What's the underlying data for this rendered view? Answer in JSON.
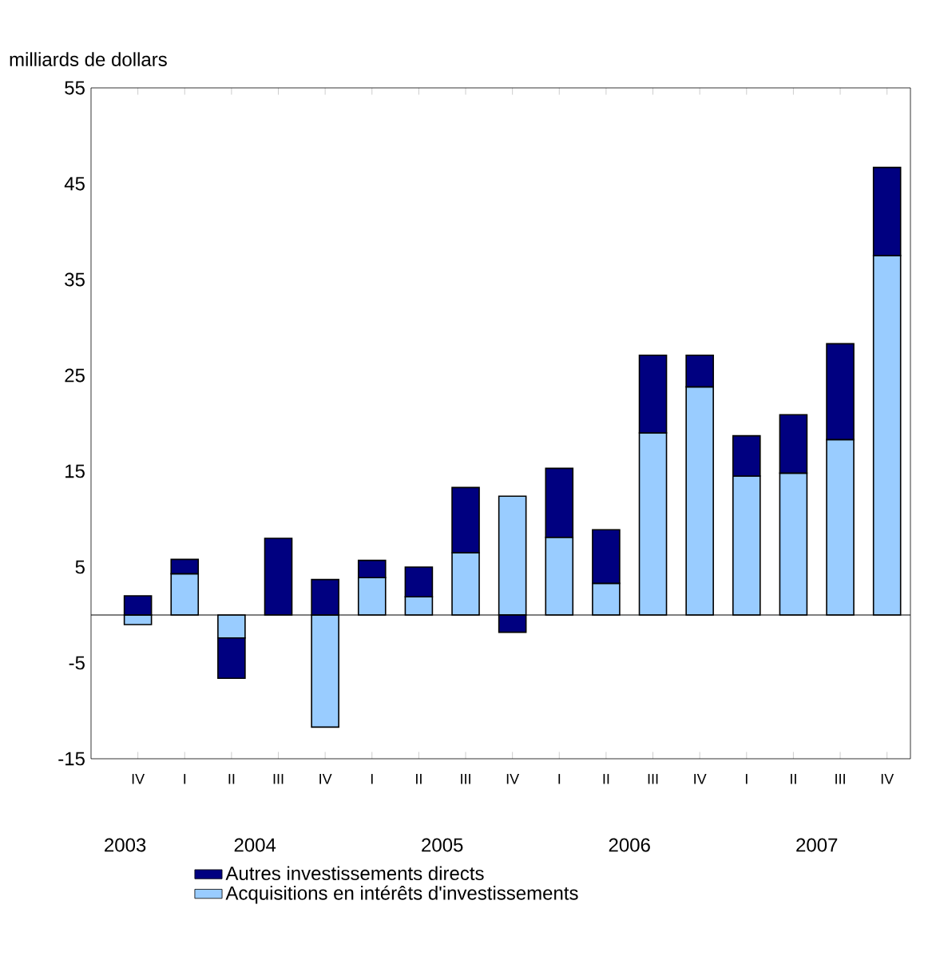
{
  "chart_data": {
    "type": "bar",
    "stacked": true,
    "ylabel": "milliards de dollars",
    "categories": [
      "IV",
      "I",
      "II",
      "III",
      "IV",
      "I",
      "II",
      "III",
      "IV",
      "I",
      "II",
      "III",
      "IV",
      "I",
      "II",
      "III",
      "IV"
    ],
    "series": [
      {
        "name": "Acquisitions en intérêts d'investissements",
        "color": "#99ccff",
        "values": [
          -1.0,
          4.3,
          -2.4,
          null,
          -11.7,
          3.9,
          1.9,
          6.5,
          12.4,
          8.1,
          3.3,
          19.0,
          23.8,
          14.5,
          14.8,
          18.3,
          37.5
        ]
      },
      {
        "name": "Autres investissements directs",
        "color": "#000080",
        "values": [
          2.0,
          1.5,
          -4.2,
          8.0,
          3.7,
          1.8,
          3.1,
          6.8,
          -1.8,
          7.2,
          5.6,
          8.1,
          3.3,
          4.2,
          6.1,
          10.0,
          9.2
        ]
      }
    ],
    "ylim": [
      -15,
      55
    ],
    "yticks": [
      -15,
      -5,
      5,
      15,
      25,
      35,
      45,
      55
    ],
    "annotations": [
      "2003",
      "2004",
      "2005",
      "2006",
      "2007"
    ],
    "legend": "bottom",
    "grid": false
  }
}
